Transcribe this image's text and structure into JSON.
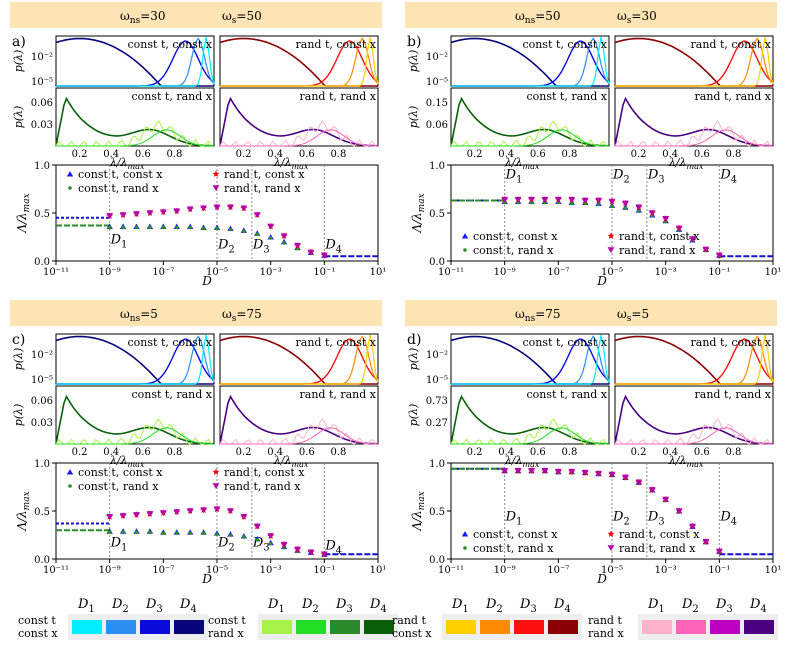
{
  "colors": {
    "banner": "#fde4b5",
    "cc": [
      "#00eeff",
      "#2a8ff0",
      "#0b0bdd",
      "#06067a"
    ],
    "cr": [
      "#a8f34a",
      "#22dd22",
      "#2a8a2a",
      "#0a600a"
    ],
    "rc": [
      "#ffd000",
      "#ff8c00",
      "#ff1010",
      "#8b0000"
    ],
    "rr": [
      "#ffb3c8",
      "#ff66bb",
      "#c000c0",
      "#4b0082"
    ],
    "marker_cc": "#1a1aff",
    "marker_cr": "#2e8b2e",
    "marker_rc": "#ff0000",
    "marker_rr": "#b000b0",
    "hline_a": "#1010d0",
    "hline_b": "#2a8a2a"
  },
  "chart_data": [
    {
      "id": "a",
      "panel_label": "a)",
      "banner": {
        "ns_label": "ω",
        "ns_sub": "ns",
        "ns_value": "=30",
        "s_label": "ω",
        "s_sub": "s",
        "s_value": "=50"
      },
      "hist_top_left": "const t, const x",
      "hist_top_right": "rand t, const x",
      "hist_bot_left": "const t, rand x",
      "hist_bot_right": "rand t, rand x",
      "hist_top_yticks": [
        "10⁻²",
        "10⁻⁵"
      ],
      "hist_bot_yticks": [
        "0.06",
        "0.03"
      ],
      "hist_ylabel": "p(λ)",
      "hist_xticks": [
        "0.2",
        "0.4",
        "0.6",
        "0.8"
      ],
      "hist_xlabel": "λ/λmax",
      "type": "scatter",
      "xlabel": "D",
      "ylabel": "Λ/λmax",
      "xlog_range": [
        -11,
        1
      ],
      "ylim": [
        0,
        1.0
      ],
      "yticks": [
        "0.0",
        "0.5",
        "1.0"
      ],
      "xticks": [
        "10⁻¹¹",
        "10⁻⁹",
        "10⁻⁷",
        "10⁻⁵",
        "10⁻³",
        "10⁻¹",
        "10¹"
      ],
      "d_markers": [
        {
          "label": "D1",
          "log_d": -9,
          "text_y": 0.18
        },
        {
          "label": "D2",
          "log_d": -5,
          "text_y": 0.13
        },
        {
          "label": "D3",
          "log_d": -3.7,
          "text_y": 0.13
        },
        {
          "label": "D4",
          "log_d": -1,
          "text_y": 0.13
        }
      ],
      "hline_a": 0.45,
      "hline_b": 0.37,
      "hline_tail": 0.05,
      "legend": [
        "const t, const x",
        "const t, rand x",
        "rand t, const x",
        "rand t, rand x"
      ],
      "legend_pos": "top-left",
      "series_log_d": [
        -9,
        -8.5,
        -8,
        -7.5,
        -7,
        -6.5,
        -6,
        -5.5,
        -5,
        -4.5,
        -4,
        -3.5,
        -3,
        -2.5,
        -2,
        -1.5,
        -1
      ],
      "series_lower": [
        0.36,
        0.36,
        0.36,
        0.36,
        0.36,
        0.36,
        0.36,
        0.35,
        0.35,
        0.34,
        0.32,
        0.29,
        0.25,
        0.2,
        0.14,
        0.09,
        0.06
      ],
      "series_upper": [
        0.47,
        0.48,
        0.49,
        0.5,
        0.51,
        0.52,
        0.54,
        0.55,
        0.56,
        0.56,
        0.55,
        0.48,
        0.36,
        0.26,
        0.16,
        0.09,
        0.06
      ]
    },
    {
      "id": "b",
      "panel_label": "b)",
      "banner": {
        "ns_label": "ω",
        "ns_sub": "ns",
        "ns_value": "=50",
        "s_label": "ω",
        "s_sub": "s",
        "s_value": "=30"
      },
      "hist_top_left": "const t, const x",
      "hist_top_right": "rand t, const x",
      "hist_bot_left": "const t, rand x",
      "hist_bot_right": "rand t, rand x",
      "hist_top_yticks": [
        "10⁻²",
        "10⁻⁵"
      ],
      "hist_bot_yticks": [
        "0.15",
        "0.06"
      ],
      "hist_ylabel": "p(λ)",
      "hist_xticks": [
        "0.2",
        "0.4",
        "0.6",
        "0.8"
      ],
      "hist_xlabel": "λ/λmax",
      "type": "scatter",
      "xlabel": "D",
      "ylabel": "Λ/λmax",
      "xlog_range": [
        -11,
        1
      ],
      "ylim": [
        0,
        1.0
      ],
      "yticks": [
        "0.0",
        "0.5",
        "1.0"
      ],
      "xticks": [
        "10⁻¹¹",
        "10⁻⁹",
        "10⁻⁷",
        "10⁻⁵",
        "10⁻³",
        "10⁻¹",
        "10¹"
      ],
      "d_markers": [
        {
          "label": "D1",
          "log_d": -9,
          "text_y": 0.86
        },
        {
          "label": "D2",
          "log_d": -5,
          "text_y": 0.86
        },
        {
          "label": "D3",
          "log_d": -3.7,
          "text_y": 0.86
        },
        {
          "label": "D4",
          "log_d": -1,
          "text_y": 0.86
        }
      ],
      "hline_a": 0.63,
      "hline_b": 0.63,
      "hline_tail": 0.05,
      "legend": [
        "const t, const x",
        "const t, rand x",
        "rand t, const x",
        "rand t, rand x"
      ],
      "legend_pos": "bottom-left",
      "series_log_d": [
        -9,
        -8.5,
        -8,
        -7.5,
        -7,
        -6.5,
        -6,
        -5.5,
        -5,
        -4.5,
        -4,
        -3.5,
        -3,
        -2.5,
        -2,
        -1.5,
        -1
      ],
      "series_lower": [
        0.62,
        0.62,
        0.62,
        0.62,
        0.62,
        0.61,
        0.61,
        0.6,
        0.58,
        0.56,
        0.53,
        0.48,
        0.42,
        0.33,
        0.22,
        0.12,
        0.06
      ],
      "series_upper": [
        0.64,
        0.64,
        0.64,
        0.64,
        0.64,
        0.64,
        0.63,
        0.63,
        0.62,
        0.6,
        0.56,
        0.5,
        0.44,
        0.34,
        0.23,
        0.12,
        0.06
      ]
    },
    {
      "id": "c",
      "panel_label": "c)",
      "banner": {
        "ns_label": "ω",
        "ns_sub": "ns",
        "ns_value": "=5",
        "s_label": "ω",
        "s_sub": "s",
        "s_value": "=75"
      },
      "hist_top_left": "const t, const x",
      "hist_top_right": "rand t, const x",
      "hist_bot_left": "const t, rand x",
      "hist_bot_right": "rand t, rand x",
      "hist_top_yticks": [
        "10⁻²",
        "10⁻⁵"
      ],
      "hist_bot_yticks": [
        "0.06",
        "0.03"
      ],
      "hist_ylabel": "p(λ)",
      "hist_xticks": [
        "0.2",
        "0.4",
        "0.6",
        "0.8"
      ],
      "hist_xlabel": "λ/λmax",
      "type": "scatter",
      "xlabel": "D",
      "ylabel": "Λ/λmax",
      "xlog_range": [
        -11,
        1
      ],
      "ylim": [
        0,
        1.0
      ],
      "yticks": [
        "0.0",
        "0.5",
        "1.0"
      ],
      "xticks": [
        "10⁻¹¹",
        "10⁻⁹",
        "10⁻⁷",
        "10⁻⁵",
        "10⁻³",
        "10⁻¹",
        "10¹"
      ],
      "d_markers": [
        {
          "label": "D1",
          "log_d": -9,
          "text_y": 0.13
        },
        {
          "label": "D2",
          "log_d": -5,
          "text_y": 0.13
        },
        {
          "label": "D3",
          "log_d": -3.7,
          "text_y": 0.13
        },
        {
          "label": "D4",
          "log_d": -1,
          "text_y": 0.1
        }
      ],
      "hline_a": 0.37,
      "hline_b": 0.3,
      "hline_tail": 0.05,
      "legend": [
        "const t, const x",
        "const t, rand x",
        "rand t, const x",
        "rand t, rand x"
      ],
      "legend_pos": "top-left",
      "series_log_d": [
        -9,
        -8.5,
        -8,
        -7.5,
        -7,
        -6.5,
        -6,
        -5.5,
        -5,
        -4.5,
        -4,
        -3.5,
        -3,
        -2.5,
        -2,
        -1.5,
        -1
      ],
      "series_lower": [
        0.29,
        0.29,
        0.29,
        0.29,
        0.28,
        0.28,
        0.28,
        0.28,
        0.27,
        0.26,
        0.24,
        0.21,
        0.17,
        0.13,
        0.09,
        0.07,
        0.05
      ],
      "series_upper": [
        0.44,
        0.45,
        0.46,
        0.47,
        0.48,
        0.49,
        0.5,
        0.51,
        0.52,
        0.5,
        0.44,
        0.34,
        0.24,
        0.15,
        0.1,
        0.07,
        0.05
      ]
    },
    {
      "id": "d",
      "panel_label": "d)",
      "banner": {
        "ns_label": "ω",
        "ns_sub": "ns",
        "ns_value": "=75",
        "s_label": "ω",
        "s_sub": "s",
        "s_value": "=5"
      },
      "hist_top_left": "const t, const x",
      "hist_top_right": "rand t, const x",
      "hist_bot_left": "const t, rand x",
      "hist_bot_right": "rand t, rand x",
      "hist_top_yticks": [
        "10⁻²",
        "10⁻⁵"
      ],
      "hist_bot_yticks": [
        "0.73",
        "0.27"
      ],
      "hist_ylabel": "p(λ)",
      "hist_xticks": [
        "0.2",
        "0.4",
        "0.6",
        "0.8"
      ],
      "hist_xlabel": "λ/λmax",
      "type": "scatter",
      "xlabel": "D",
      "ylabel": "Λ/λmax",
      "xlog_range": [
        -11,
        1
      ],
      "ylim": [
        0,
        1.0
      ],
      "yticks": [
        "0.0",
        "0.5",
        "1.0"
      ],
      "xticks": [
        "10⁻¹¹",
        "10⁻⁹",
        "10⁻⁷",
        "10⁻⁵",
        "10⁻³",
        "10⁻¹",
        "10¹"
      ],
      "d_markers": [
        {
          "label": "D1",
          "log_d": -9,
          "text_y": 0.4
        },
        {
          "label": "D2",
          "log_d": -5,
          "text_y": 0.4
        },
        {
          "label": "D3",
          "log_d": -3.7,
          "text_y": 0.4
        },
        {
          "label": "D4",
          "log_d": -1,
          "text_y": 0.4
        }
      ],
      "hline_a": 0.94,
      "hline_b": 0.94,
      "hline_tail": 0.05,
      "legend": [
        "const t, const x",
        "const t, rand x",
        "rand t, const x",
        "rand t, rand x"
      ],
      "legend_pos": "bottom-left",
      "series_log_d": [
        -9,
        -8.5,
        -8,
        -7.5,
        -7,
        -6.5,
        -6,
        -5.5,
        -5,
        -4.5,
        -4,
        -3.5,
        -3,
        -2.5,
        -2,
        -1.5,
        -1
      ],
      "series_lower": [
        0.92,
        0.92,
        0.92,
        0.92,
        0.91,
        0.91,
        0.9,
        0.89,
        0.88,
        0.85,
        0.8,
        0.72,
        0.62,
        0.5,
        0.34,
        0.18,
        0.08
      ],
      "series_upper": [
        0.92,
        0.92,
        0.92,
        0.92,
        0.91,
        0.91,
        0.9,
        0.89,
        0.88,
        0.85,
        0.8,
        0.72,
        0.62,
        0.5,
        0.34,
        0.18,
        0.08
      ]
    }
  ],
  "color_legend": {
    "d_labels": [
      "D1",
      "D2",
      "D3",
      "D4"
    ],
    "groups": [
      {
        "key": "cc",
        "line1": "const t",
        "line2": "const x"
      },
      {
        "key": "cr",
        "line1": "const t",
        "line2": "rand x"
      },
      {
        "key": "rc",
        "line1": "rand t",
        "line2": "const x"
      },
      {
        "key": "rr",
        "line1": "rand t",
        "line2": "rand x"
      }
    ]
  }
}
